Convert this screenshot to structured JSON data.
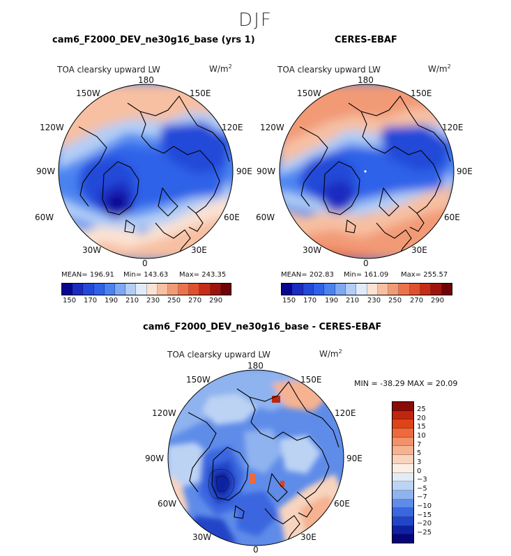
{
  "season": "DJF",
  "variable": "TOA clearsky upward LW",
  "units_base": "W/m",
  "units_exp": "2",
  "longitude_labels": [
    "180",
    "150E",
    "120E",
    "90E",
    "60E",
    "30E",
    "0",
    "30W",
    "60W",
    "90W",
    "120W",
    "150W"
  ],
  "panels": [
    {
      "title": "cam6_F2000_DEV_ne30g16_base (yrs 1)",
      "mean": "MEAN= 196.91",
      "min": "Min= 143.63",
      "max": "Max= 243.35"
    },
    {
      "title": "CERES-EBAF",
      "mean": "MEAN= 202.83",
      "min": "Min= 161.09",
      "max": "Max= 255.57"
    }
  ],
  "diff": {
    "title": "cam6_F2000_DEV_ne30g16_base - CERES-EBAF",
    "minmax": "MIN = -38.29 MAX =  20.09"
  },
  "colorbar": {
    "ticks": [
      "150",
      "170",
      "190",
      "210",
      "230",
      "250",
      "270",
      "290"
    ],
    "colors": [
      "#08068f",
      "#1a2bc0",
      "#2448d8",
      "#2f62e8",
      "#4a82f0",
      "#7ea8f2",
      "#b3cdf5",
      "#e2ebf8",
      "#fbe3d4",
      "#f7c0a2",
      "#f29a76",
      "#ec724e",
      "#e0502e",
      "#c52d18",
      "#9e140c",
      "#6e0204"
    ]
  },
  "diff_colorbar": {
    "labels": [
      "25",
      "20",
      "15",
      "10",
      "7",
      "5",
      "3",
      "0",
      "−3",
      "−5",
      "−7",
      "−10",
      "−15",
      "−20",
      "−25"
    ],
    "colors": [
      "#8b0a06",
      "#c0260f",
      "#de4418",
      "#ee6a3c",
      "#f2926a",
      "#f5b392",
      "#f8d4bf",
      "#fbeee4",
      "#e2ecf7",
      "#bcd3f4",
      "#8fb3ef",
      "#5f8ce9",
      "#3a66e0",
      "#2244c8",
      "#1020a0",
      "#06057a"
    ]
  },
  "chart_data": {
    "type": "heatmap",
    "projection": "north polar stereographic",
    "title": "DJF",
    "variable": "TOA clearsky upward LW",
    "units": "W/m^2",
    "maps": [
      {
        "name": "cam6_F2000_DEV_ne30g16_base (yrs 1)",
        "mean": 196.91,
        "min": 143.63,
        "max": 243.35,
        "contour_levels": [
          150,
          170,
          190,
          210,
          230,
          250,
          270,
          290
        ]
      },
      {
        "name": "CERES-EBAF",
        "mean": 202.83,
        "min": 161.09,
        "max": 255.57,
        "contour_levels": [
          150,
          170,
          190,
          210,
          230,
          250,
          270,
          290
        ]
      },
      {
        "name": "cam6_F2000_DEV_ne30g16_base - CERES-EBAF",
        "min": -38.29,
        "max": 20.09,
        "contour_levels": [
          -25,
          -20,
          -15,
          -10,
          -7,
          -5,
          -3,
          0,
          3,
          5,
          7,
          10,
          15,
          20,
          25
        ]
      }
    ]
  }
}
